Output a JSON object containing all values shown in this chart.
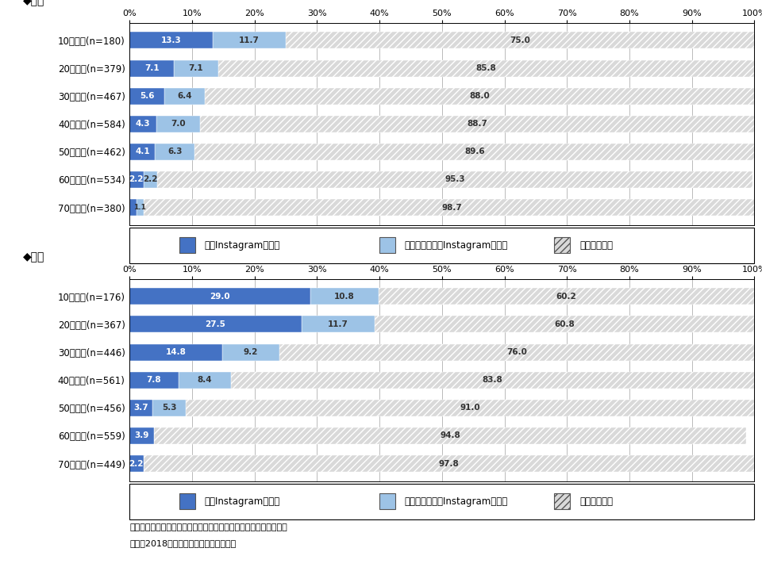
{
  "male_categories": [
    "10代男性(n=180)",
    "20代男性(n=379)",
    "30代男性(n=467)",
    "40代男性(n=584)",
    "50代男性(n=462)",
    "60代男性(n=534)",
    "70代男性(n=380)"
  ],
  "male_daily": [
    13.3,
    7.1,
    5.6,
    4.3,
    4.1,
    2.2,
    1.1
  ],
  "male_nondaily": [
    11.7,
    7.1,
    6.4,
    7.0,
    6.3,
    2.2,
    1.1
  ],
  "male_notuse": [
    75.0,
    85.8,
    88.0,
    88.7,
    89.6,
    95.3,
    98.7
  ],
  "female_categories": [
    "10代女性(n=176)",
    "20代女性(n=367)",
    "30代女性(n=446)",
    "40代女性(n=561)",
    "50代女性(n=456)",
    "60代女性(n=559)",
    "70代女性(n=449)"
  ],
  "female_daily": [
    29.0,
    27.5,
    14.8,
    7.8,
    3.7,
    3.9,
    2.2
  ],
  "female_nondaily": [
    10.8,
    11.7,
    9.2,
    8.4,
    5.3,
    0.0,
    0.0
  ],
  "female_notuse": [
    60.2,
    60.8,
    76.0,
    83.8,
    91.0,
    94.8,
    97.8
  ],
  "color_daily": "#4472C4",
  "color_nondaily": "#9DC3E6",
  "color_notuse": "#D9D9D9",
  "legend_labels": [
    "毎日Instagramを利用",
    "毎日ではないがInstagramを利用",
    "使っていない"
  ],
  "male_section_title": "◆男性",
  "female_section_title": "◆女性",
  "note": "注：「使っていない」はスマホ･ケータイ未所有者も含めて集計。",
  "source": "出所：2018年一般向けモバイル動向調査"
}
